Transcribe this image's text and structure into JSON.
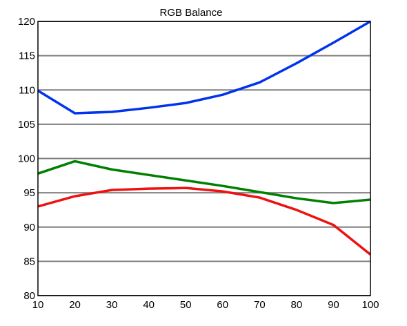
{
  "chart_data": {
    "type": "line",
    "title": "RGB Balance",
    "xlabel": "",
    "ylabel": "",
    "x": [
      10,
      20,
      30,
      40,
      50,
      60,
      70,
      80,
      90,
      100
    ],
    "xlim": [
      10,
      100
    ],
    "ylim": [
      80,
      120
    ],
    "x_ticks": [
      10,
      20,
      30,
      40,
      50,
      60,
      70,
      80,
      90,
      100
    ],
    "y_ticks": [
      80,
      85,
      90,
      95,
      100,
      105,
      110,
      115,
      120
    ],
    "grid": true,
    "legend": "none",
    "series": [
      {
        "color": "#0033ee",
        "values": [
          109.9,
          106.6,
          106.8,
          107.4,
          108.1,
          109.3,
          111.1,
          113.9,
          116.9,
          120.0
        ]
      },
      {
        "color": "#008000",
        "values": [
          97.8,
          99.6,
          98.4,
          97.6,
          96.8,
          96.0,
          95.1,
          94.2,
          93.5,
          94.0
        ]
      },
      {
        "color": "#ee1111",
        "values": [
          93.0,
          94.5,
          95.4,
          95.6,
          95.7,
          95.2,
          94.3,
          92.5,
          90.3,
          86.0
        ]
      }
    ]
  }
}
